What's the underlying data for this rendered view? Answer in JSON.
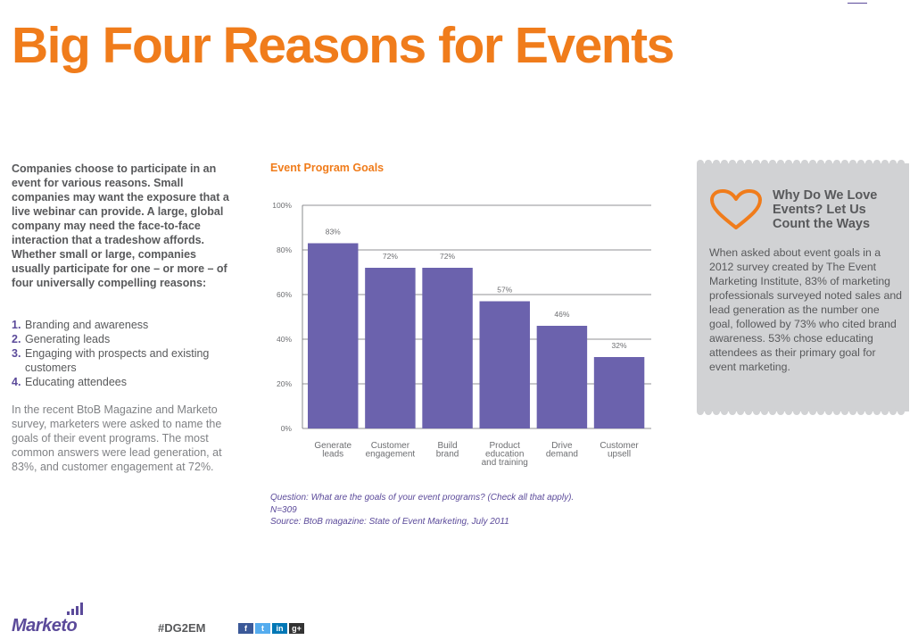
{
  "title": "Big Four Reasons for Events",
  "intro": "Companies choose to participate in an event for various reasons. Small companies may want the exposure that a live webinar can provide. A large, global company may need the face-to-face interaction that a tradeshow affords. Whether small or large, companies usually participate for one – or more – of four universally compelling reasons:",
  "reasons": [
    {
      "num": "1.",
      "label": "Branding and awareness"
    },
    {
      "num": "2.",
      "label": "Generating leads"
    },
    {
      "num": "3.",
      "label": "Engaging with prospects and existing customers"
    },
    {
      "num": "4.",
      "label": "Educating attendees"
    }
  ],
  "survey_text": "In the recent BtoB Magazine and Marketo survey, marketers were asked to name the goals of their event programs. The most common answers were lead generation, at 83%, and customer engagement at 72%.",
  "chart_title": "Event Program Goals",
  "chart_data": {
    "type": "bar",
    "categories": [
      [
        "Generate",
        "leads"
      ],
      [
        "Customer",
        "engagement"
      ],
      [
        "Build",
        "brand"
      ],
      [
        "Product",
        "education",
        "and training"
      ],
      [
        "Drive",
        "demand"
      ],
      [
        "Customer",
        "upsell"
      ]
    ],
    "values": [
      83,
      72,
      72,
      57,
      46,
      32
    ],
    "data_labels": [
      "83%",
      "72%",
      "72%",
      "57%",
      "46%",
      "32%"
    ],
    "yticks": [
      "0%",
      "20%",
      "40%",
      "60%",
      "80%",
      "100%"
    ],
    "ylim": [
      0,
      100
    ],
    "grid": true,
    "bar_color": "#6b62ad"
  },
  "chart_notes": {
    "question": "Question: What are the goals of your event programs? (Check all that apply).",
    "n": "N=309",
    "source": "Source: BtoB magazine: State of Event Marketing, July 2011"
  },
  "panel": {
    "icon": "heart-icon",
    "heading": "Why Do We Love Events? Let Us Count the Ways",
    "body": "When asked about event goals in a 2012 survey created by The Event Marketing Institute, 83% of marketing professionals surveyed noted sales and lead generation as the number one goal, followed by 73% who cited brand awareness. 53% chose educating attendees as their primary goal for event marketing."
  },
  "footer": {
    "logo": "Marketo",
    "hashtag": "#DG2EM",
    "social": [
      {
        "icon": "facebook-icon",
        "glyph": "f",
        "color": "#3b5998"
      },
      {
        "icon": "twitter-icon",
        "glyph": "t",
        "color": "#55acee"
      },
      {
        "icon": "linkedin-icon",
        "glyph": "in",
        "color": "#0077b5"
      },
      {
        "icon": "googleplus-icon",
        "glyph": "g+",
        "color": "#333333"
      }
    ]
  },
  "colors": {
    "accent": "#f07c1b",
    "brand": "#5b4a9a",
    "panel": "#d1d2d4"
  }
}
